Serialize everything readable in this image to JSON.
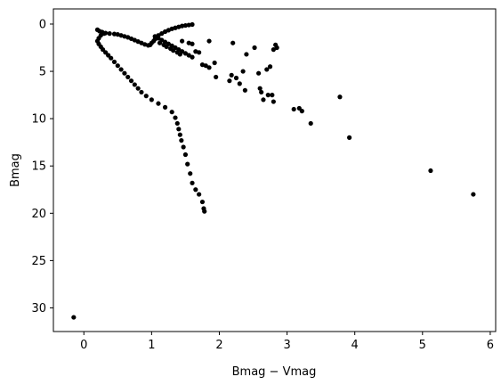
{
  "chart_data": {
    "type": "scatter",
    "xlabel": "Bmag − Vmag",
    "ylabel": "Bmag",
    "xlim": [
      -0.45,
      6.08
    ],
    "ylim": [
      32.5,
      -1.6
    ],
    "y_inverted": true,
    "grid": false,
    "legend": "none",
    "marker_color": "#000000",
    "x_ticks": [
      0,
      1,
      2,
      3,
      4,
      5,
      6
    ],
    "y_ticks": [
      0,
      5,
      10,
      15,
      20,
      25,
      30
    ],
    "series": [
      {
        "points": [
          [
            0.2,
            0.6
          ],
          [
            0.23,
            0.75
          ],
          [
            0.27,
            0.85
          ],
          [
            0.32,
            0.95
          ],
          [
            0.38,
            1.0
          ],
          [
            0.45,
            1.05
          ],
          [
            0.5,
            1.1
          ],
          [
            0.55,
            1.2
          ],
          [
            0.6,
            1.3
          ],
          [
            0.65,
            1.4
          ],
          [
            0.7,
            1.55
          ],
          [
            0.75,
            1.7
          ],
          [
            0.8,
            1.85
          ],
          [
            0.85,
            2.0
          ],
          [
            0.9,
            2.15
          ],
          [
            0.95,
            2.25
          ],
          [
            0.98,
            2.2
          ],
          [
            1.0,
            2.0
          ],
          [
            1.03,
            1.8
          ],
          [
            1.05,
            1.6
          ],
          [
            1.08,
            1.4
          ],
          [
            1.1,
            1.2
          ],
          [
            1.15,
            1.0
          ],
          [
            1.2,
            0.8
          ],
          [
            1.25,
            0.65
          ],
          [
            1.3,
            0.5
          ],
          [
            1.35,
            0.4
          ],
          [
            1.4,
            0.3
          ],
          [
            1.45,
            0.2
          ],
          [
            1.5,
            0.15
          ],
          [
            1.55,
            0.1
          ],
          [
            1.6,
            0.05
          ],
          [
            1.05,
            1.3
          ],
          [
            1.1,
            1.5
          ],
          [
            1.15,
            1.7
          ],
          [
            1.2,
            1.9
          ],
          [
            1.25,
            2.1
          ],
          [
            1.3,
            2.3
          ],
          [
            1.35,
            2.5
          ],
          [
            1.4,
            2.7
          ],
          [
            1.45,
            2.9
          ],
          [
            1.5,
            3.1
          ],
          [
            1.55,
            3.3
          ],
          [
            1.6,
            3.5
          ],
          [
            1.12,
            2.0
          ],
          [
            1.18,
            2.2
          ],
          [
            1.22,
            2.4
          ],
          [
            1.28,
            2.6
          ],
          [
            1.32,
            2.8
          ],
          [
            1.38,
            3.0
          ],
          [
            1.42,
            3.2
          ],
          [
            0.3,
            1.0
          ],
          [
            0.25,
            1.2
          ],
          [
            0.22,
            1.5
          ],
          [
            0.2,
            1.8
          ],
          [
            0.22,
            2.1
          ],
          [
            0.25,
            2.4
          ],
          [
            0.28,
            2.7
          ],
          [
            0.32,
            3.0
          ],
          [
            0.36,
            3.3
          ],
          [
            0.4,
            3.6
          ],
          [
            0.45,
            4.0
          ],
          [
            0.5,
            4.4
          ],
          [
            0.55,
            4.8
          ],
          [
            0.6,
            5.2
          ],
          [
            0.65,
            5.6
          ],
          [
            0.7,
            6.0
          ],
          [
            0.75,
            6.4
          ],
          [
            0.8,
            6.8
          ],
          [
            0.85,
            7.2
          ],
          [
            0.92,
            7.6
          ],
          [
            1.0,
            8.0
          ],
          [
            1.1,
            8.4
          ],
          [
            1.2,
            8.8
          ],
          [
            1.3,
            9.3
          ],
          [
            1.35,
            9.9
          ],
          [
            1.38,
            10.5
          ],
          [
            1.4,
            11.1
          ],
          [
            1.42,
            11.7
          ],
          [
            1.44,
            12.3
          ],
          [
            1.47,
            13.0
          ],
          [
            1.5,
            13.8
          ],
          [
            1.53,
            14.8
          ],
          [
            1.57,
            15.8
          ],
          [
            1.6,
            16.8
          ],
          [
            1.65,
            17.5
          ],
          [
            1.7,
            18.0
          ],
          [
            1.75,
            18.8
          ],
          [
            1.77,
            19.5
          ],
          [
            1.78,
            19.8
          ],
          [
            1.45,
            1.8
          ],
          [
            1.55,
            2.0
          ],
          [
            1.6,
            2.1
          ],
          [
            1.65,
            2.9
          ],
          [
            1.7,
            3.0
          ],
          [
            1.75,
            4.3
          ],
          [
            1.8,
            4.4
          ],
          [
            1.85,
            1.8
          ],
          [
            1.85,
            4.6
          ],
          [
            1.93,
            4.1
          ],
          [
            1.95,
            5.6
          ],
          [
            2.15,
            6.0
          ],
          [
            2.18,
            5.4
          ],
          [
            2.2,
            2.0
          ],
          [
            2.25,
            5.7
          ],
          [
            2.3,
            6.3
          ],
          [
            2.35,
            5.0
          ],
          [
            2.38,
            7.0
          ],
          [
            2.4,
            3.2
          ],
          [
            2.52,
            2.5
          ],
          [
            2.58,
            5.2
          ],
          [
            2.6,
            6.8
          ],
          [
            2.62,
            7.2
          ],
          [
            2.65,
            8.0
          ],
          [
            2.7,
            4.8
          ],
          [
            2.72,
            7.5
          ],
          [
            2.75,
            4.5
          ],
          [
            2.78,
            7.5
          ],
          [
            2.8,
            8.2
          ],
          [
            2.8,
            2.7
          ],
          [
            2.83,
            2.2
          ],
          [
            2.85,
            2.5
          ],
          [
            3.1,
            9.0
          ],
          [
            3.18,
            8.9
          ],
          [
            3.22,
            9.2
          ],
          [
            3.35,
            10.5
          ],
          [
            3.78,
            7.7
          ],
          [
            3.92,
            12.0
          ],
          [
            5.12,
            15.5
          ],
          [
            5.75,
            18.0
          ],
          [
            -0.15,
            31.0
          ]
        ]
      }
    ]
  }
}
